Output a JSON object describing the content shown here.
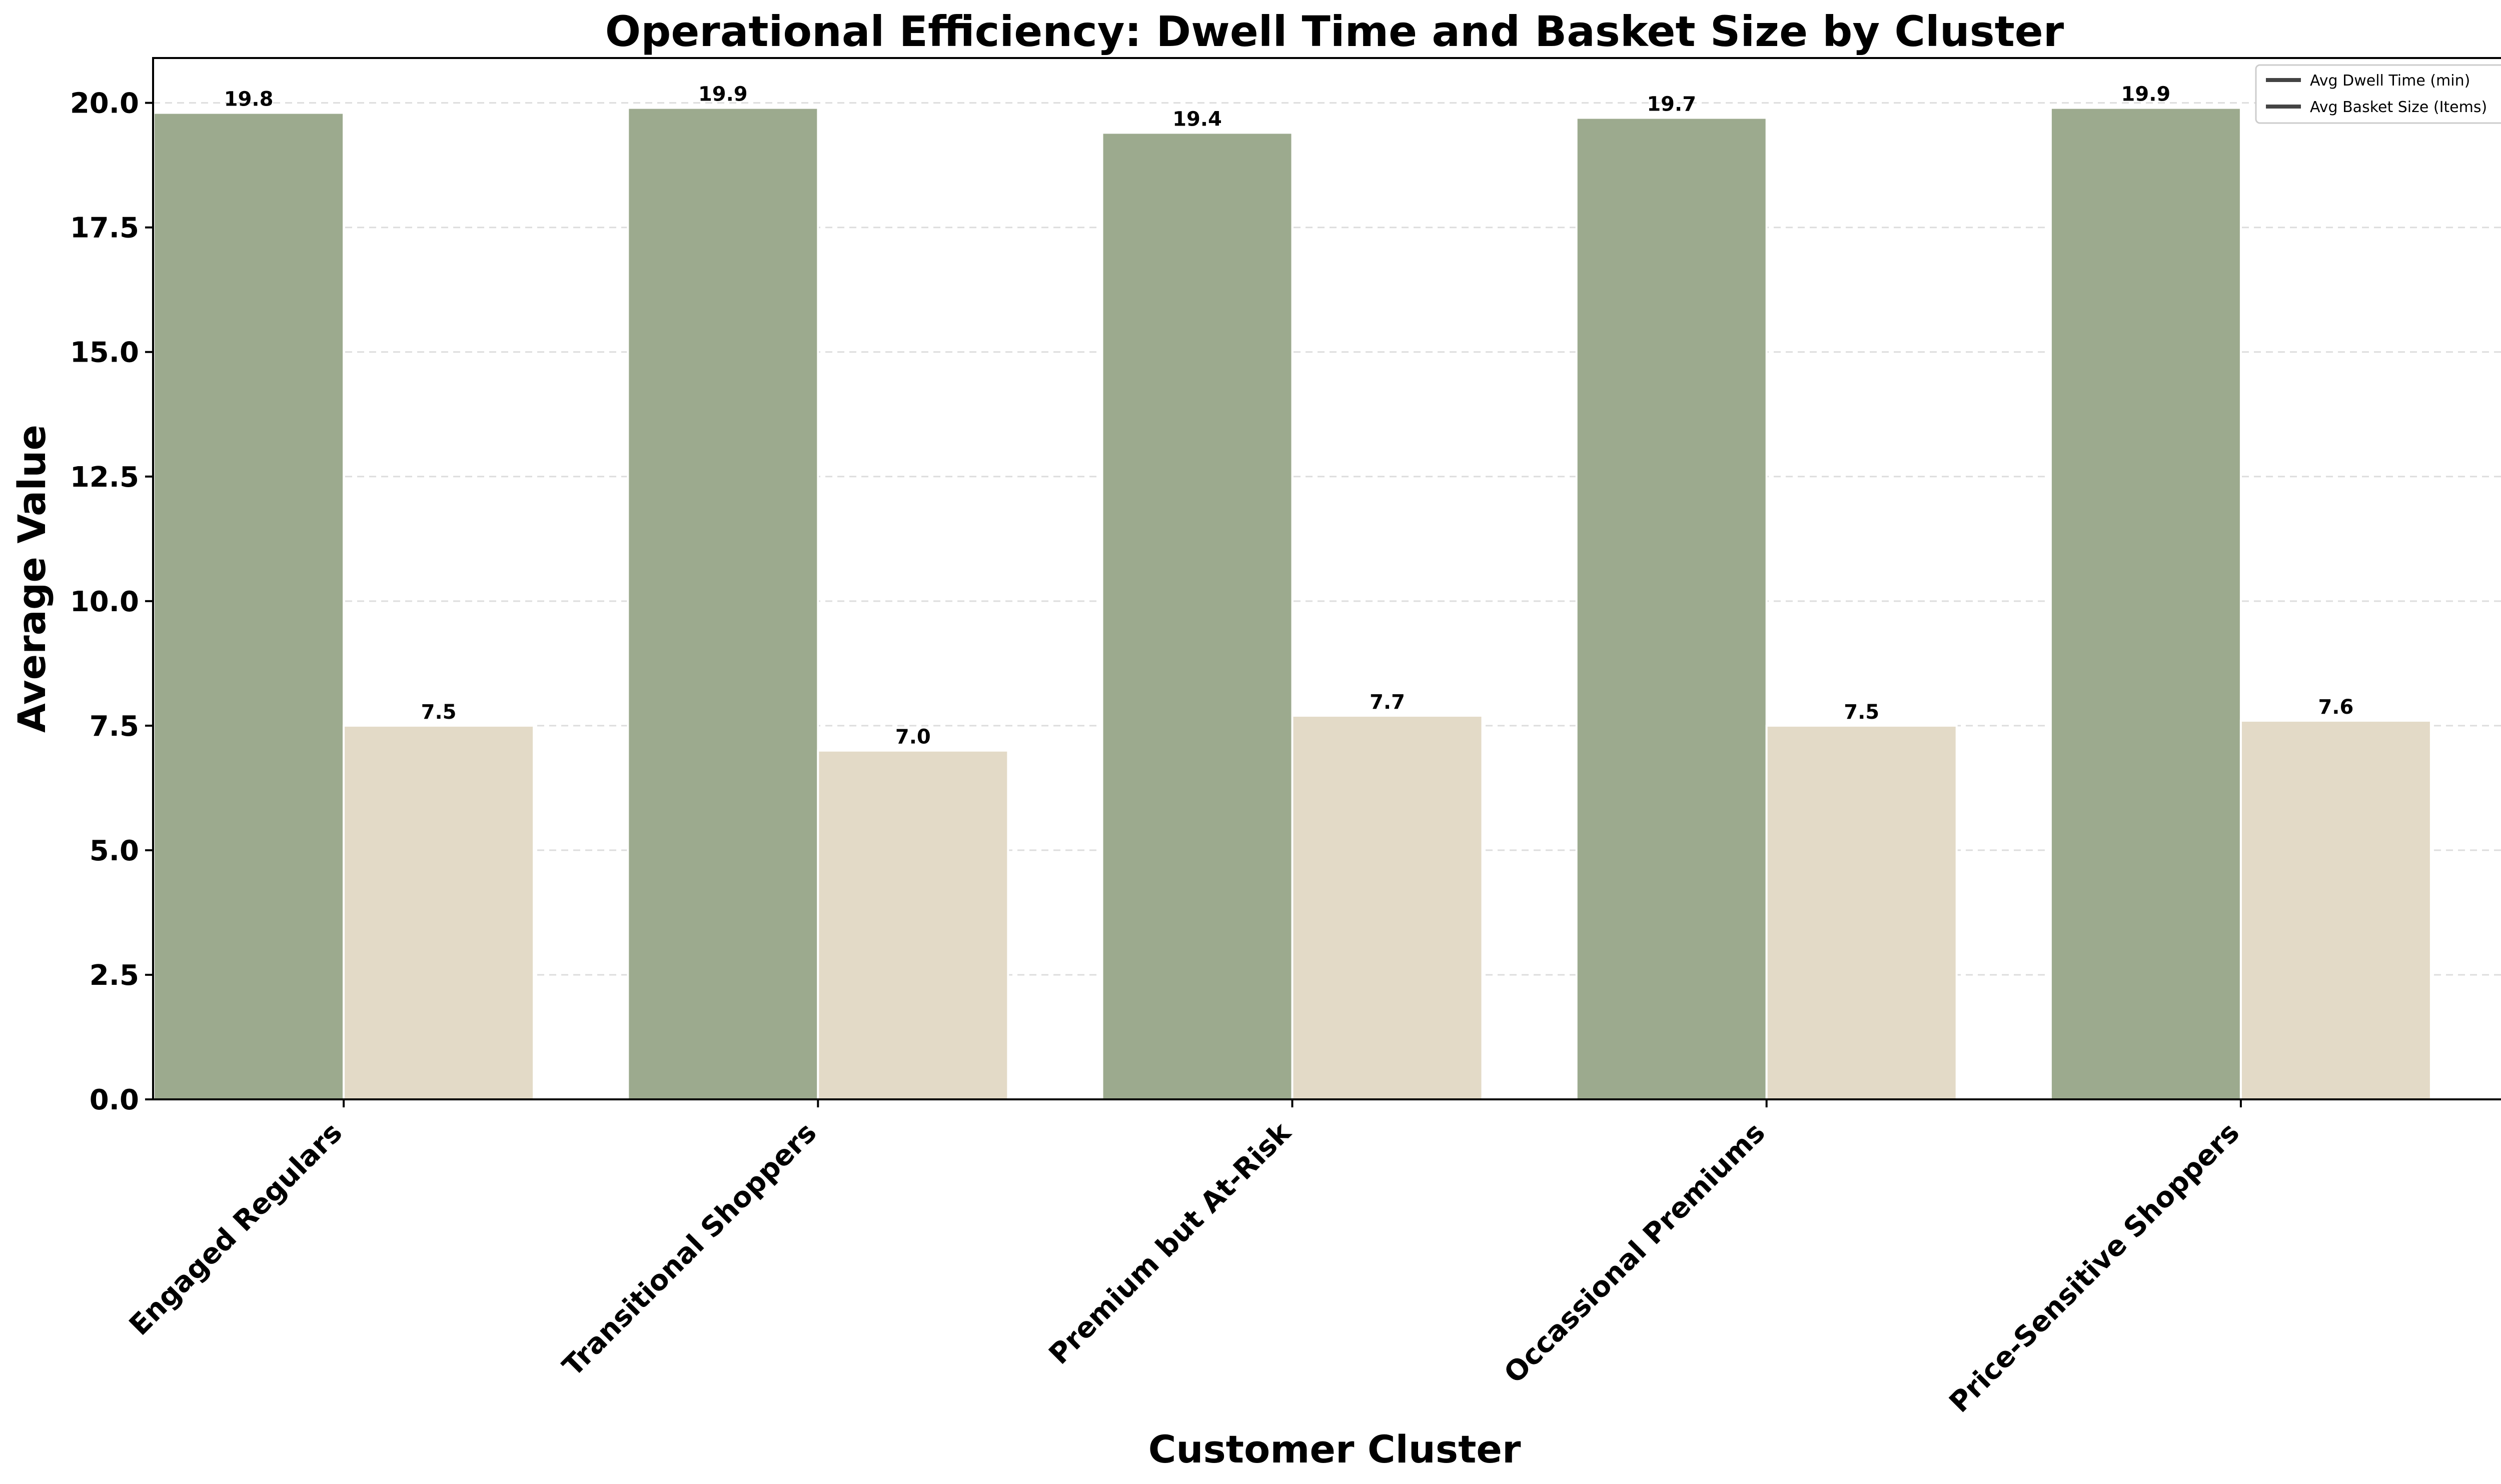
{
  "chart_data": {
    "type": "bar",
    "title": "Operational Efficiency: Dwell Time and Basket Size by Cluster",
    "xlabel": "Customer Cluster",
    "ylabel": "Average Value",
    "categories": [
      "Engaged Regulars",
      "Transitional Shoppers",
      "Premium but At-Risk",
      "Occassional Premiums",
      "Price-Sensitive Shoppers"
    ],
    "series": [
      {
        "name": "Avg Dwell Time (min)",
        "values": [
          19.8,
          19.9,
          19.4,
          19.7,
          19.9
        ],
        "labels": [
          "19.8",
          "19.9",
          "19.4",
          "19.7",
          "19.9"
        ],
        "color": "#9caa8e"
      },
      {
        "name": "Avg Basket Size (Items)",
        "values": [
          7.5,
          7.0,
          7.7,
          7.5,
          7.6
        ],
        "labels": [
          "7.5",
          "7.0",
          "7.7",
          "7.5",
          "7.6"
        ],
        "color": "#e3dac7"
      }
    ],
    "ylim": [
      0,
      20.9
    ],
    "yticks": [
      0,
      2.5,
      5,
      7.5,
      10,
      12.5,
      15,
      17.5,
      20
    ],
    "ytick_labels": [
      "0.0",
      "2.5",
      "5.0",
      "7.5",
      "10.0",
      "12.5",
      "15.0",
      "17.5",
      "20.0"
    ],
    "grid": "y-dashed",
    "legend_position": "top-right",
    "x_tick_rotation": "45deg"
  }
}
